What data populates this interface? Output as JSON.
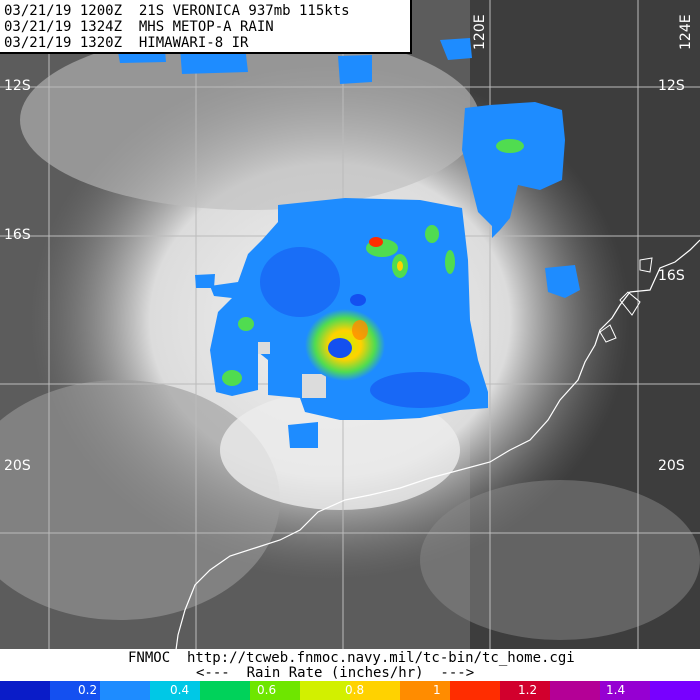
{
  "header": {
    "line1": "03/21/19 1200Z  21S VERONICA 937mb 115kts",
    "line2": "03/21/19 1324Z  MHS METOP-A RAIN",
    "line3": "03/21/19 1320Z  HIMAWARI-8 IR"
  },
  "grid_labels": {
    "lat_12": "12S",
    "lat_16": "16S",
    "lat_20": "20S",
    "lon_120": "120E",
    "lon_124": "124E"
  },
  "footer": {
    "source_line": "FNMOC  http://tcweb.fnmoc.navy.mil/tc-bin/tc_home.cgi",
    "rate_line": "<---  Rain Rate (inches/hr)  --->"
  },
  "colorbar": {
    "colors": [
      "#0a1cc8",
      "#1450f0",
      "#1e8cff",
      "#00c8e6",
      "#00d25a",
      "#6ee600",
      "#d2f000",
      "#ffd200",
      "#ff8c00",
      "#ff2d00",
      "#d2002d",
      "#b40096",
      "#9600d2",
      "#7800ff"
    ],
    "labels": [
      "0.2",
      "0.4",
      "0.6",
      "0.8",
      "1",
      "1.2",
      "1.4"
    ]
  }
}
